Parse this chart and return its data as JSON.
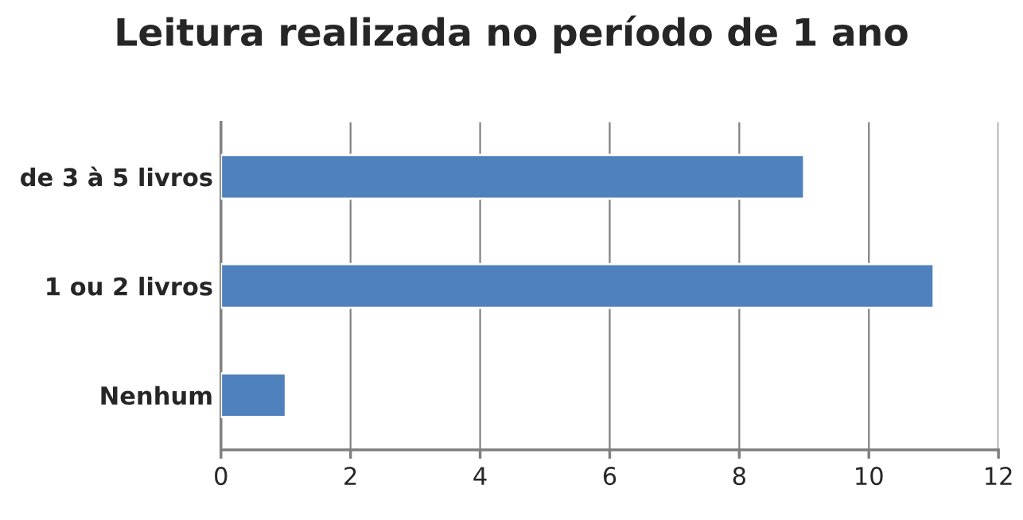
{
  "chart_data": {
    "type": "bar",
    "orientation": "horizontal",
    "title": "Leitura realizada no período de 1 ano",
    "categories": [
      "de 3 à 5 livros",
      "1 ou 2 livros",
      "Nenhum"
    ],
    "values": [
      9,
      11,
      1
    ],
    "color": "#4f81bd",
    "xlim": [
      0,
      12
    ],
    "xticks": [
      0,
      2,
      4,
      6,
      8,
      10,
      12
    ],
    "grid": "x",
    "legend": false
  }
}
